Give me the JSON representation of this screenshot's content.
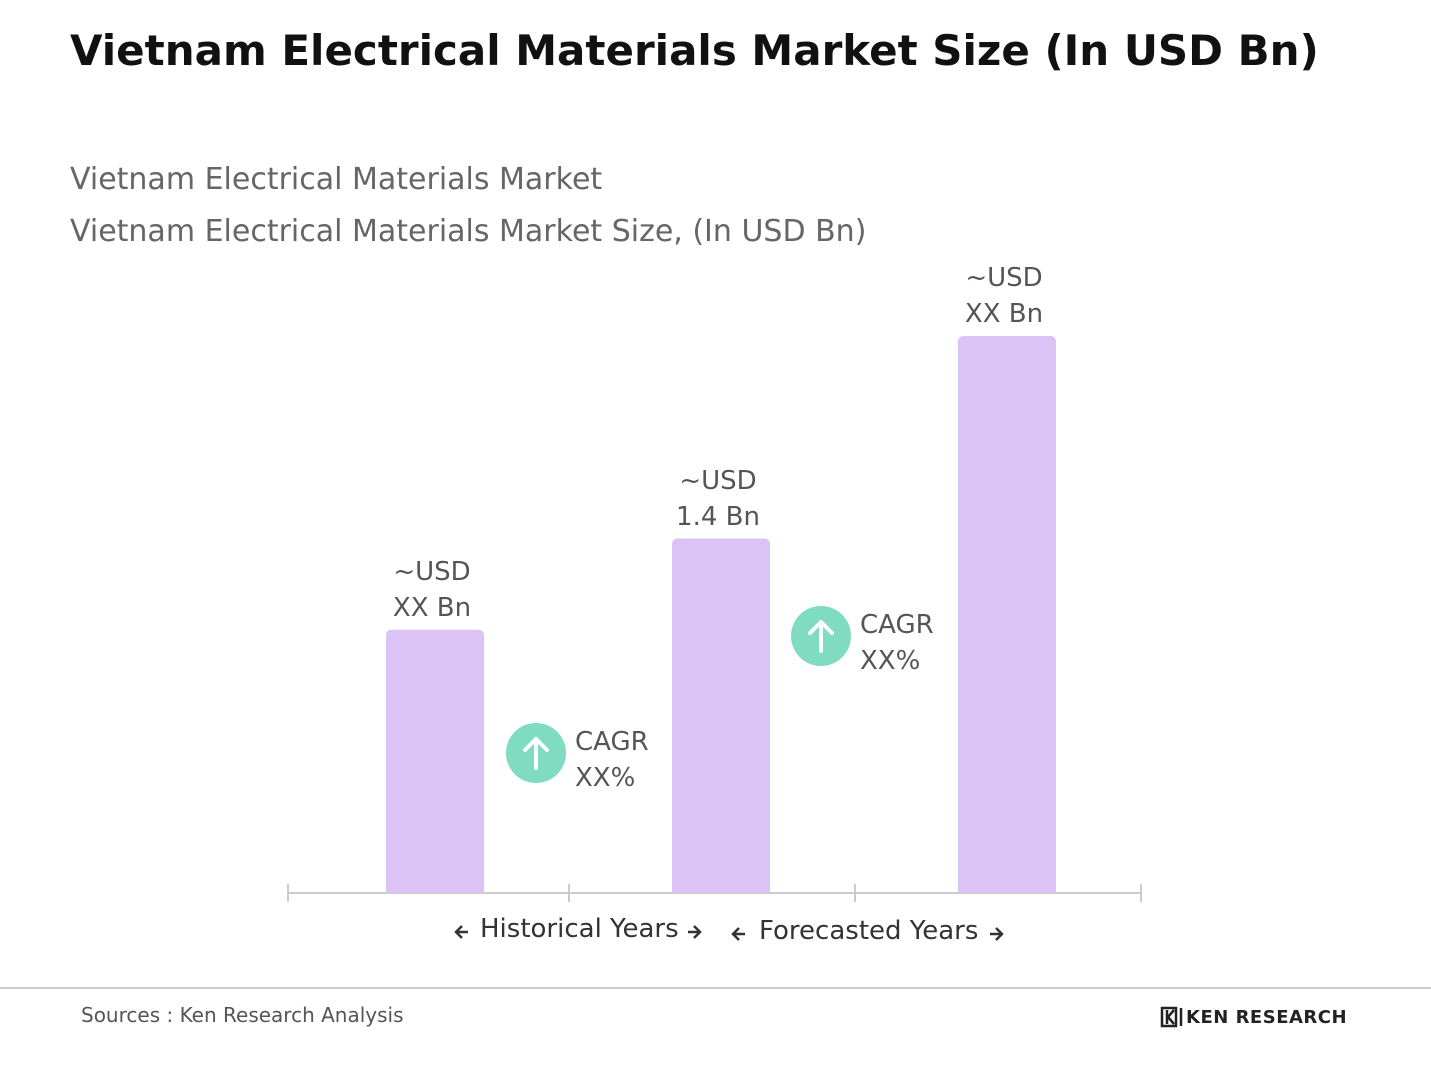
{
  "chart_data": {
    "type": "bar",
    "title": "Vietnam Electrical Materials Market Size (In USD Bn)",
    "subtitle": [
      "Vietnam Electrical Materials Market",
      "Vietnam Electrical Materials  Market Size, (In USD Bn)"
    ],
    "categories": [
      null,
      null,
      null
    ],
    "values": [
      1.04,
      1.4,
      2.2
    ],
    "value_labels": [
      "~USD\nXX Bn",
      "~USD\n1.4 Bn",
      "~USD\nXX Bn"
    ],
    "color": "#dcc3f5",
    "annotations": [
      "CAGR\nXX%",
      "CAGR\nXX%"
    ],
    "annotation_color": "#7fdcc0",
    "periods": [
      "Historical Years",
      "Forecasted Years"
    ]
  },
  "footer": {
    "source": "Sources : Ken Research Analysis",
    "logo": "KEN RESEARCH"
  }
}
